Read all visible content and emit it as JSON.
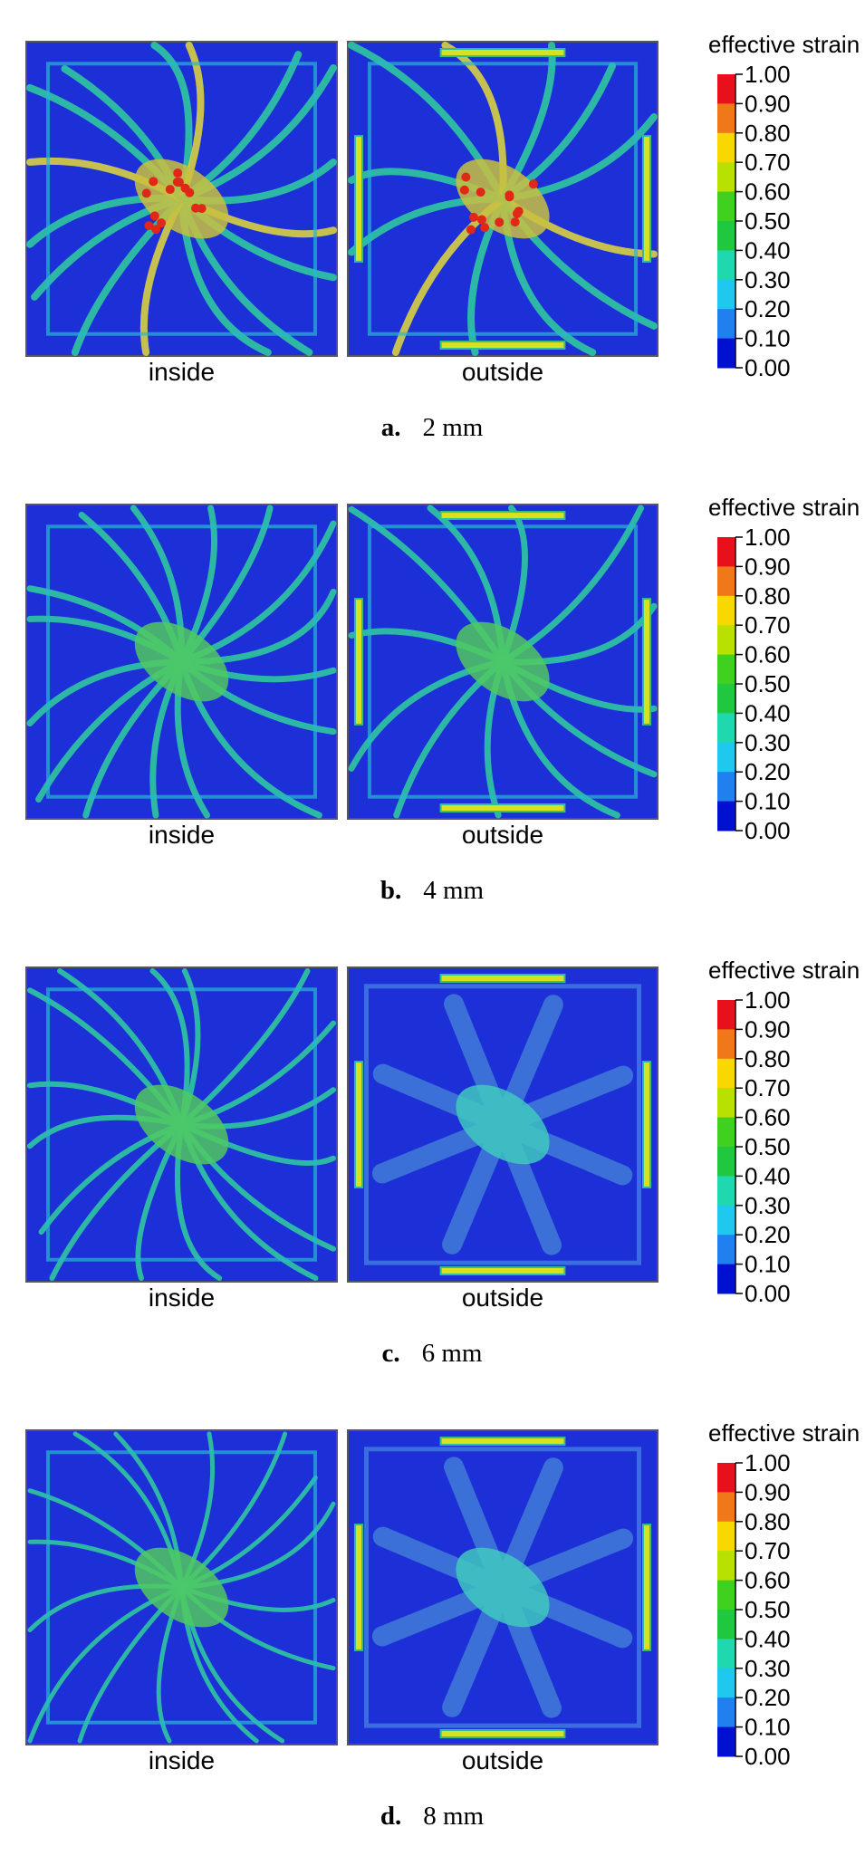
{
  "panels": [
    {
      "label": "a.",
      "caption": "2 mm",
      "views": [
        "inside",
        "outside"
      ],
      "legend": {
        "title": "effective strain",
        "ticks": [
          "1.00",
          "0.90",
          "0.80",
          "0.70",
          "0.60",
          "0.50",
          "0.40",
          "0.30",
          "0.20",
          "0.10",
          "0.00"
        ]
      }
    },
    {
      "label": "b.",
      "caption": "4 mm",
      "views": [
        "inside",
        "outside"
      ],
      "legend": {
        "title": "effective strain",
        "ticks": [
          "1.00",
          "0.90",
          "0.80",
          "0.70",
          "0.60",
          "0.50",
          "0.40",
          "0.30",
          "0.20",
          "0.10",
          "0.00"
        ]
      }
    },
    {
      "label": "c.",
      "caption": "6 mm",
      "views": [
        "inside",
        "outside"
      ],
      "legend": {
        "title": "effective strain",
        "ticks": [
          "1.00",
          "0.90",
          "0.80",
          "0.70",
          "0.60",
          "0.50",
          "0.40",
          "0.30",
          "0.20",
          "0.10",
          "0.00"
        ]
      }
    },
    {
      "label": "d.",
      "caption": "8 mm",
      "views": [
        "inside",
        "outside"
      ],
      "legend": {
        "title": "effective strain",
        "ticks": [
          "1.00",
          "0.90",
          "0.80",
          "0.70",
          "0.60",
          "0.50",
          "0.40",
          "0.30",
          "0.20",
          "0.10",
          "0.00"
        ]
      }
    }
  ],
  "colorbar_colors": [
    "#e8101a",
    "#f07818",
    "#f8d800",
    "#b8e000",
    "#40d020",
    "#20c840",
    "#20d8b0",
    "#20c8f0",
    "#2080f0",
    "#0010d0"
  ]
}
